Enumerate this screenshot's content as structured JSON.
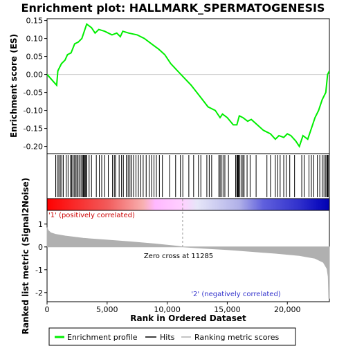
{
  "colors": {
    "es_line": "#00ee00",
    "hit_line": "#000000",
    "metric_fill": "#b0b0b0",
    "positive_text": "#cc0000",
    "negative_text": "#3333cc"
  },
  "legend": {
    "items": [
      {
        "label": "Enrichment profile",
        "color": "#00ee00"
      },
      {
        "label": "Hits",
        "color": "#000000"
      },
      {
        "label": "Ranking metric scores",
        "color": "#b0b0b0"
      }
    ]
  },
  "chart_data": {
    "type": "line",
    "title": "Enrichment plot: HALLMARK_SPERMATOGENESIS",
    "xlabel": "Rank in Ordered Dataset",
    "n_genes": 23500,
    "x_ticks": [
      0,
      5000,
      10000,
      15000,
      20000
    ],
    "x_tick_labels": [
      "0",
      "5,000",
      "10,000",
      "15,000",
      "20,000"
    ],
    "enrichment": {
      "ylabel": "Enrichment score (ES)",
      "ylim": [
        -0.22,
        0.155
      ],
      "y_ticks": [
        -0.2,
        -0.15,
        -0.1,
        -0.05,
        0.0,
        0.05,
        0.1,
        0.15
      ],
      "y_tick_labels": [
        "-0.20",
        "-0.15",
        "-0.10",
        "-0.05",
        "0.00",
        "0.05",
        "0.10",
        "0.15"
      ],
      "points": [
        [
          0,
          0.0
        ],
        [
          800,
          -0.03
        ],
        [
          900,
          0.01
        ],
        [
          1200,
          0.03
        ],
        [
          1500,
          0.04
        ],
        [
          1700,
          0.055
        ],
        [
          2000,
          0.06
        ],
        [
          2300,
          0.085
        ],
        [
          2600,
          0.09
        ],
        [
          2900,
          0.1
        ],
        [
          3100,
          0.12
        ],
        [
          3300,
          0.14
        ],
        [
          3700,
          0.13
        ],
        [
          4000,
          0.115
        ],
        [
          4300,
          0.125
        ],
        [
          4800,
          0.12
        ],
        [
          5400,
          0.11
        ],
        [
          5800,
          0.115
        ],
        [
          6100,
          0.105
        ],
        [
          6300,
          0.12
        ],
        [
          6800,
          0.115
        ],
        [
          7500,
          0.11
        ],
        [
          8100,
          0.1
        ],
        [
          8700,
          0.085
        ],
        [
          9300,
          0.07
        ],
        [
          9800,
          0.055
        ],
        [
          10300,
          0.03
        ],
        [
          11000,
          0.005
        ],
        [
          11285,
          -0.005
        ],
        [
          12000,
          -0.03
        ],
        [
          12700,
          -0.06
        ],
        [
          13400,
          -0.09
        ],
        [
          14000,
          -0.1
        ],
        [
          14400,
          -0.12
        ],
        [
          14600,
          -0.11
        ],
        [
          15000,
          -0.12
        ],
        [
          15500,
          -0.14
        ],
        [
          15800,
          -0.14
        ],
        [
          16000,
          -0.115
        ],
        [
          16300,
          -0.12
        ],
        [
          16700,
          -0.13
        ],
        [
          17000,
          -0.125
        ],
        [
          17500,
          -0.14
        ],
        [
          18000,
          -0.155
        ],
        [
          18300,
          -0.16
        ],
        [
          18600,
          -0.165
        ],
        [
          19000,
          -0.18
        ],
        [
          19300,
          -0.17
        ],
        [
          19700,
          -0.175
        ],
        [
          20000,
          -0.165
        ],
        [
          20300,
          -0.17
        ],
        [
          20700,
          -0.185
        ],
        [
          21000,
          -0.2
        ],
        [
          21300,
          -0.17
        ],
        [
          21700,
          -0.18
        ],
        [
          22000,
          -0.15
        ],
        [
          22300,
          -0.12
        ],
        [
          22600,
          -0.1
        ],
        [
          22900,
          -0.07
        ],
        [
          23200,
          -0.05
        ],
        [
          23350,
          0.0
        ],
        [
          23500,
          0.01
        ]
      ]
    },
    "hits": [
      720,
      850,
      980,
      1100,
      1230,
      1350,
      1600,
      1750,
      1950,
      2050,
      2150,
      2260,
      2380,
      2480,
      2580,
      2700,
      2830,
      2950,
      3020,
      3090,
      3160,
      3230,
      3300,
      3500,
      3700,
      4100,
      4350,
      4550,
      4800,
      5100,
      5450,
      5600,
      5700,
      6000,
      6200,
      6350,
      6600,
      6750,
      6900,
      7050,
      7200,
      7400,
      7600,
      7800,
      8000,
      8250,
      8500,
      8700,
      8900,
      9100,
      9350,
      9600,
      10200,
      10700,
      11100,
      11300,
      11800,
      12200,
      12600,
      12800,
      13300,
      13500,
      13700,
      14300,
      14400,
      14500,
      14650,
      14800,
      15100,
      15700,
      15800,
      15850,
      15900,
      15950,
      16050,
      16200,
      16300,
      16400,
      16650,
      16900,
      17400,
      18300,
      18600,
      19000,
      19200,
      19400,
      19700,
      19900,
      20200,
      20600,
      21200,
      21400,
      21800,
      22000,
      22200,
      22500,
      22700,
      22900,
      23050,
      23200,
      23300,
      23350,
      23400
    ],
    "ranking": {
      "ylabel": "Ranked list metric (Signal2Noise)",
      "ylim": [
        -2.4,
        1.6
      ],
      "y_ticks": [
        -2,
        -1,
        0,
        1
      ],
      "y_tick_labels": [
        "-2",
        "-1",
        "0",
        "1"
      ],
      "zero_cross_label": "Zero cross at 11285",
      "zero_cross": 11285,
      "positive_label": "'1' (positively correlated)",
      "negative_label": "'2' (negatively correlated)",
      "points": [
        [
          0,
          0.85
        ],
        [
          100,
          0.72
        ],
        [
          300,
          0.62
        ],
        [
          700,
          0.55
        ],
        [
          1500,
          0.48
        ],
        [
          3000,
          0.38
        ],
        [
          5000,
          0.3
        ],
        [
          7000,
          0.22
        ],
        [
          9000,
          0.13
        ],
        [
          10500,
          0.05
        ],
        [
          11285,
          0.0
        ],
        [
          13000,
          -0.06
        ],
        [
          15000,
          -0.12
        ],
        [
          17000,
          -0.2
        ],
        [
          19000,
          -0.28
        ],
        [
          21000,
          -0.38
        ],
        [
          22300,
          -0.5
        ],
        [
          23000,
          -0.68
        ],
        [
          23300,
          -0.95
        ],
        [
          23400,
          -1.3
        ],
        [
          23450,
          -2.25
        ],
        [
          23500,
          -2.25
        ]
      ]
    },
    "heat_band": {
      "stops": [
        {
          "rank": 0,
          "color": "#ff0000"
        },
        {
          "rank": 5000,
          "color": "#f25a5a"
        },
        {
          "rank": 8000,
          "color": "#f8b0b0"
        },
        {
          "rank": 9000,
          "color": "#ffb8ff"
        },
        {
          "rank": 11285,
          "color": "#ffd0ff"
        },
        {
          "rank": 12500,
          "color": "#e6e6f8"
        },
        {
          "rank": 16000,
          "color": "#b0b0e8"
        },
        {
          "rank": 18000,
          "color": "#6060dd"
        },
        {
          "rank": 21000,
          "color": "#3030cc"
        },
        {
          "rank": 22500,
          "color": "#1010c0"
        },
        {
          "rank": 23500,
          "color": "#0000b0"
        }
      ]
    }
  }
}
